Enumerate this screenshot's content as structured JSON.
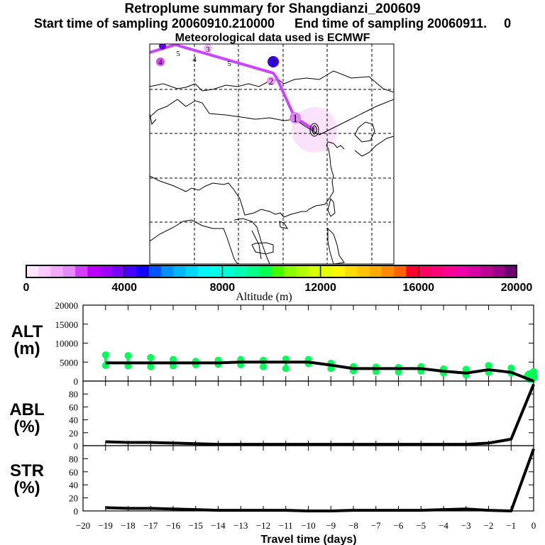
{
  "titles": {
    "main": "Retroplume summary for Shangdianzi_200609",
    "start": "Start time of sampling 20060910.210000",
    "end": "End time of sampling 20060911.",
    "end_suffix": "0",
    "met": "Meteorological data used is ECMWF"
  },
  "map": {
    "trajectory_labels": [
      "0",
      "1",
      "2",
      "2",
      "3",
      "4",
      "5",
      "4",
      "3",
      "5",
      "4"
    ],
    "trajectory_color": "#cc44ff"
  },
  "colorbar": {
    "label": "Altitude (m)",
    "ticks": [
      "0",
      "4000",
      "8000",
      "12000",
      "16000",
      "20000"
    ],
    "range": [
      0,
      20000
    ],
    "colors": [
      "#ffe6ff",
      "#f9c9ff",
      "#f0aaff",
      "#e688ff",
      "#d43cff",
      "#bb00ff",
      "#a000ff",
      "#7a00ff",
      "#4400ff",
      "#1200ff",
      "#0055ff",
      "#0090ff",
      "#00b6ff",
      "#00d7ff",
      "#00f5ff",
      "#00ffe6",
      "#00ffd2",
      "#00ffb0",
      "#00ff88",
      "#00ff50",
      "#44ff00",
      "#88ff00",
      "#b4ff00",
      "#d6ff00",
      "#e6ff00",
      "#fff600",
      "#ffdc00",
      "#ffc400",
      "#ffaa00",
      "#ff8a00",
      "#ff6000",
      "#ff0030",
      "#ff0060",
      "#ff0078",
      "#ff0090",
      "#f000a8",
      "#d800a8",
      "#bc0098",
      "#9c0088",
      "#6c0070"
    ]
  },
  "chart_data": [
    {
      "type": "line",
      "panel": "ALT",
      "ylabel": "ALT\n(m)",
      "ylabel_line1": "ALT",
      "ylabel_line2": "(m)",
      "ylim": [
        0,
        20000
      ],
      "yticks": [
        "0",
        "5000",
        "10000",
        "15000",
        "20000"
      ],
      "ytick_values": [
        0,
        5000,
        10000,
        15000,
        20000
      ],
      "x": [
        -19,
        -18,
        -17,
        -16,
        -15,
        -14,
        -13,
        -12,
        -11,
        -10,
        -9,
        -8,
        -7,
        -6,
        -5,
        -4,
        -3,
        -2,
        -1,
        0
      ],
      "series": [
        {
          "name": "mean altitude",
          "color": "#000000",
          "values": [
            4800,
            4800,
            4800,
            4800,
            4800,
            4800,
            5000,
            5000,
            5000,
            5000,
            4200,
            3300,
            3300,
            3300,
            3300,
            2600,
            2100,
            3000,
            2300,
            0
          ]
        }
      ],
      "scatter_clusters": {
        "color": "#00ff55",
        "x": [
          -19,
          -18,
          -17,
          -16,
          -15,
          -14,
          -13,
          -12,
          -11,
          -10,
          -9,
          -8,
          -7,
          -6,
          -5,
          -4,
          -3,
          -2,
          -1,
          0
        ],
        "high": [
          6900,
          6700,
          6200,
          5700,
          5200,
          5500,
          5700,
          5500,
          5800,
          5700,
          4700,
          3800,
          3700,
          3600,
          3800,
          3200,
          3100,
          4100,
          3400,
          2500
        ],
        "low": [
          4100,
          4000,
          3800,
          4000,
          4300,
          4400,
          4300,
          3800,
          3300,
          4600,
          3300,
          2700,
          2500,
          2400,
          2600,
          2100,
          1600,
          2300,
          2100,
          800
        ]
      },
      "xlim": [
        -20,
        0
      ]
    },
    {
      "type": "line",
      "panel": "ABL",
      "ylabel_line1": "ABL",
      "ylabel_line2": "(%)",
      "ylim": [
        0,
        100
      ],
      "yticks": [
        "0",
        "20",
        "40",
        "60",
        "80"
      ],
      "ytick_values": [
        0,
        20,
        40,
        60,
        80
      ],
      "x": [
        -19,
        -18,
        -17,
        -16,
        -15,
        -14,
        -13,
        -12,
        -11,
        -10,
        -9,
        -8,
        -7,
        -6,
        -5,
        -4,
        -3,
        -2,
        -1,
        0
      ],
      "series": [
        {
          "name": "ABL fraction",
          "color": "#000000",
          "values": [
            6,
            5,
            5,
            4,
            3,
            2,
            2,
            2,
            2,
            2,
            2,
            2,
            2,
            2,
            2,
            2,
            2,
            4,
            10,
            95
          ]
        }
      ],
      "xlim": [
        -20,
        0
      ]
    },
    {
      "type": "line",
      "panel": "STR",
      "ylabel_line1": "STR",
      "ylabel_line2": "(%)",
      "ylim": [
        0,
        100
      ],
      "yticks": [
        "0",
        "20",
        "40",
        "60",
        "80"
      ],
      "ytick_values": [
        0,
        20,
        40,
        60,
        80
      ],
      "x": [
        -19,
        -18,
        -17,
        -16,
        -15,
        -14,
        -13,
        -12,
        -11,
        -10,
        -9,
        -8,
        -7,
        -6,
        -5,
        -4,
        -3,
        -2,
        -1,
        0
      ],
      "series": [
        {
          "name": "STR fraction",
          "color": "#000000",
          "values": [
            5,
            4,
            4,
            3,
            2,
            1,
            1,
            1,
            1,
            0,
            0,
            1,
            1,
            1,
            1,
            2,
            3,
            1,
            0,
            95
          ]
        }
      ],
      "xlim": [
        -20,
        0
      ],
      "xlabel": "Travel time (days)",
      "xticks": [
        "-20",
        "-19",
        "-18",
        "-17",
        "-16",
        "-15",
        "-14",
        "-13",
        "-12",
        "-11",
        "-10",
        "-9",
        "-8",
        "-7",
        "-6",
        "-5",
        "-4",
        "-3",
        "-2",
        "-1",
        "0"
      ],
      "xtick_values": [
        -20,
        -19,
        -18,
        -17,
        -16,
        -15,
        -14,
        -13,
        -12,
        -11,
        -10,
        -9,
        -8,
        -7,
        -6,
        -5,
        -4,
        -3,
        -2,
        -1,
        0
      ]
    }
  ]
}
